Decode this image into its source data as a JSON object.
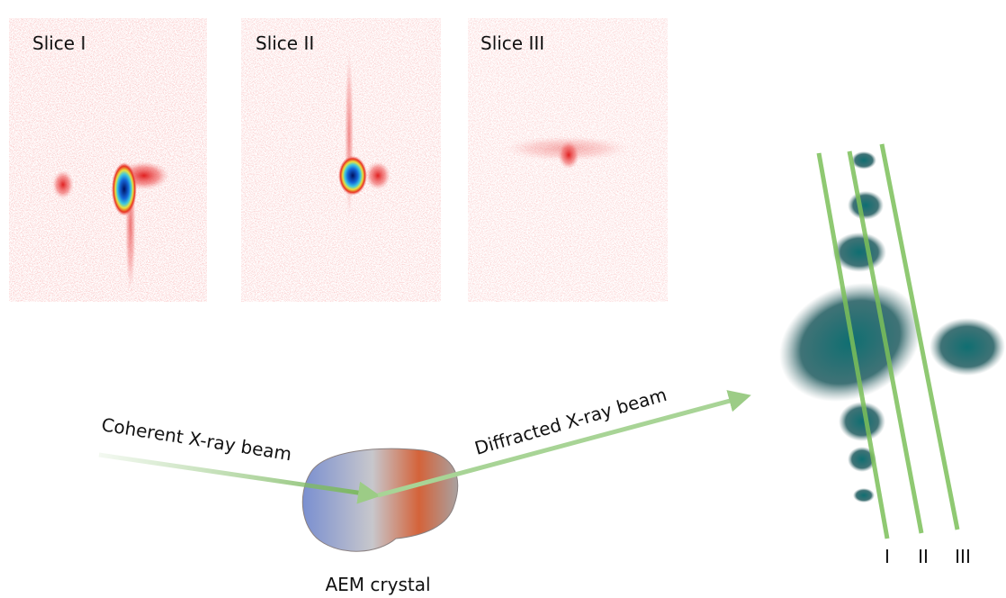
{
  "panels": [
    {
      "label": "Slice I"
    },
    {
      "label": "Slice II"
    },
    {
      "label": "Slice III"
    }
  ],
  "beams": {
    "incident": "Coherent X-ray beam",
    "diffracted": "Diffracted X-ray beam"
  },
  "crystal": {
    "label": "AEM crystal"
  },
  "slice_markers": [
    "I",
    "II",
    "III"
  ]
}
